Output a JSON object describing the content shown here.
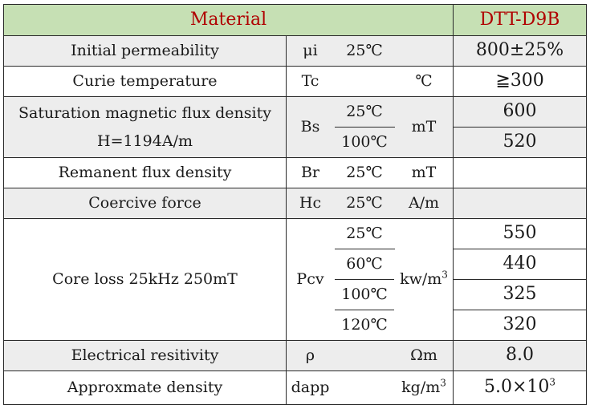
{
  "header": {
    "left": "Material",
    "right": "DTT-D9B"
  },
  "rows": {
    "initial_permeability": {
      "name": "Initial permeability",
      "symbol": "μi",
      "cond": "25℃",
      "unit": "",
      "value": "800±25%"
    },
    "curie_temperature": {
      "name": "Curie temperature",
      "symbol": "Tc",
      "cond": "",
      "unit": "℃",
      "value": "≧300"
    },
    "saturation": {
      "name_line1": "Saturation magnetic flux density",
      "name_line2": "H=1194A/m",
      "symbol": "Bs",
      "cond1": "25℃",
      "cond2": "100℃",
      "unit": "mT",
      "value1": "600",
      "value2": "520"
    },
    "remanent": {
      "name": "Remanent flux density",
      "symbol": "Br",
      "cond": "25℃",
      "unit": "mT",
      "value": ""
    },
    "coercive": {
      "name": "Coercive force",
      "symbol": "Hc",
      "cond": "25℃",
      "unit": "A/m",
      "value": ""
    },
    "core_loss": {
      "name": "Core loss  25kHz 250mT",
      "symbol": "Pcv",
      "conds": [
        "25℃",
        "60℃",
        "100℃",
        "120℃"
      ],
      "unit_base": "kw/m",
      "unit_exp": "3",
      "values": [
        "550",
        "440",
        "325",
        "320"
      ]
    },
    "resistivity": {
      "name": "Electrical resitivity",
      "symbol": "ρ",
      "cond": "",
      "unit": "Ωm",
      "value": "8.0"
    },
    "density": {
      "name": "Approxmate density",
      "symbol": "dapp",
      "cond": "",
      "unit_base": "kg/m",
      "unit_exp": "3",
      "value_base": "5.0×10",
      "value_exp": "3"
    }
  }
}
